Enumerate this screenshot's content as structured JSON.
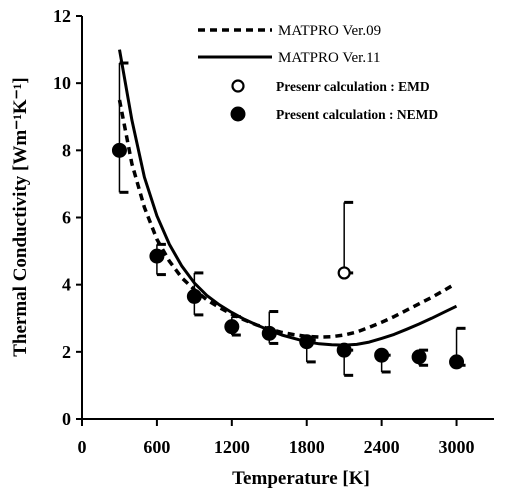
{
  "chart_data": {
    "type": "scatter",
    "xlabel": "Temperature [K]",
    "ylabel": "Thermal Conductivity [Wm⁻¹K⁻¹]",
    "xlim": [
      0,
      3300
    ],
    "ylim": [
      0,
      12
    ],
    "xticks": [
      "0",
      "600",
      "1200",
      "1800",
      "2400",
      "3000"
    ],
    "yticks": [
      "0",
      "2",
      "4",
      "6",
      "8",
      "10",
      "12"
    ],
    "legend_position": "top-right",
    "series": [
      {
        "name": "MATPRO Ver.09",
        "kind": "line",
        "style": "dashed",
        "x": [
          300,
          400,
          500,
          600,
          700,
          800,
          900,
          1000,
          1100,
          1200,
          1300,
          1400,
          1500,
          1600,
          1700,
          1800,
          1900,
          2000,
          2100,
          2200,
          2300,
          2400,
          2500,
          2600,
          2700,
          2800,
          2900,
          2960
        ],
        "y": [
          9.5,
          7.6,
          6.3,
          5.35,
          4.7,
          4.2,
          3.85,
          3.55,
          3.32,
          3.12,
          2.95,
          2.8,
          2.68,
          2.58,
          2.51,
          2.46,
          2.44,
          2.45,
          2.5,
          2.59,
          2.73,
          2.88,
          3.05,
          3.24,
          3.43,
          3.62,
          3.83,
          3.96
        ]
      },
      {
        "name": "MATPRO Ver.11",
        "kind": "line",
        "style": "solid",
        "x": [
          300,
          400,
          500,
          600,
          700,
          800,
          900,
          1000,
          1100,
          1200,
          1300,
          1400,
          1500,
          1600,
          1700,
          1800,
          1900,
          2000,
          2100,
          2200,
          2300,
          2400,
          2500,
          2600,
          2700,
          2800,
          2900,
          3000
        ],
        "y": [
          11.0,
          8.9,
          7.2,
          6.05,
          5.2,
          4.55,
          4.05,
          3.68,
          3.4,
          3.17,
          2.97,
          2.8,
          2.64,
          2.5,
          2.4,
          2.3,
          2.24,
          2.21,
          2.2,
          2.22,
          2.29,
          2.4,
          2.52,
          2.67,
          2.83,
          3.0,
          3.18,
          3.36
        ]
      },
      {
        "name": "Presenr calculation : EMD",
        "kind": "points",
        "marker": "open-circle",
        "x": [
          2100
        ],
        "y": [
          4.35
        ],
        "err_low": [
          4.35
        ],
        "err_high": [
          6.45
        ]
      },
      {
        "name": "Present calculation : NEMD",
        "kind": "points",
        "marker": "filled-circle",
        "x": [
          300,
          600,
          900,
          1200,
          1500,
          1800,
          2100,
          2400,
          2700,
          3000
        ],
        "y": [
          8.0,
          4.85,
          3.65,
          2.75,
          2.55,
          2.3,
          2.05,
          1.9,
          1.85,
          1.7
        ],
        "err_low": [
          6.75,
          4.3,
          3.1,
          2.5,
          2.25,
          1.7,
          1.3,
          1.4,
          1.6,
          1.6
        ],
        "err_high": [
          10.6,
          5.2,
          4.35,
          3.05,
          3.2,
          2.35,
          2.05,
          1.9,
          2.05,
          2.7
        ]
      }
    ]
  }
}
